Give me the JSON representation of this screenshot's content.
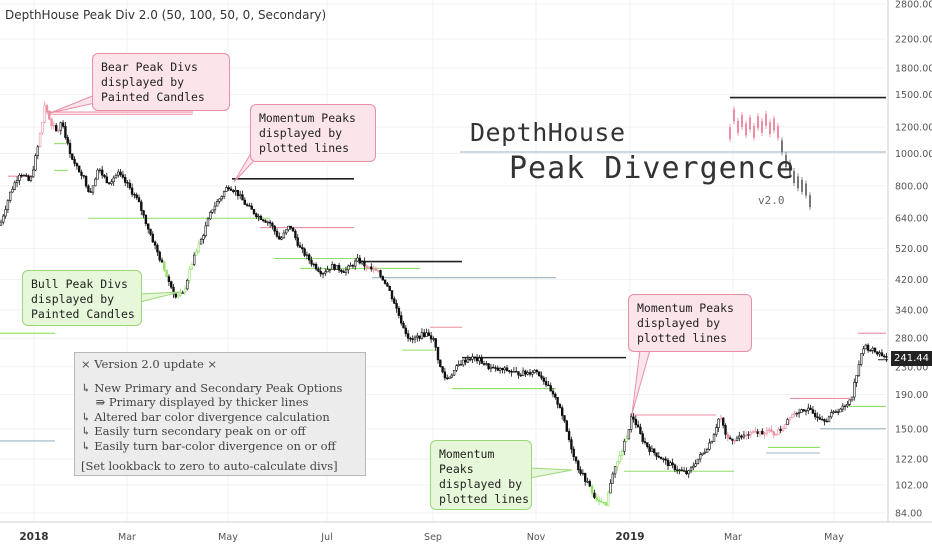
{
  "header": {
    "title": "DepthHouse Peak Div 2.0 (50, 100, 50, 0, Secondary)"
  },
  "chart_data": {
    "type": "candlestick",
    "title": "DepthHouse Peak Div 2.0 (50, 100, 50, 0, Secondary)",
    "scale": "log",
    "ylim": [
      78,
      3100
    ],
    "yticks": [
      2800,
      2200,
      1800,
      1500,
      1200,
      1000,
      800,
      640,
      520,
      420,
      340,
      280,
      230,
      190,
      150,
      122,
      102,
      84
    ],
    "xticks": [
      "2018",
      "Mar",
      "May",
      "Jul",
      "Sep",
      "Nov",
      "2019",
      "Mar",
      "May"
    ],
    "last_price": "241.44",
    "price_path": [
      [
        0,
        610
      ],
      [
        10,
        760
      ],
      [
        20,
        880
      ],
      [
        30,
        820
      ],
      [
        38,
        1050
      ],
      [
        45,
        1400
      ],
      [
        50,
        1250
      ],
      [
        57,
        1150
      ],
      [
        62,
        1250
      ],
      [
        68,
        1050
      ],
      [
        75,
        920
      ],
      [
        82,
        870
      ],
      [
        90,
        760
      ],
      [
        98,
        900
      ],
      [
        108,
        820
      ],
      [
        118,
        870
      ],
      [
        128,
        800
      ],
      [
        138,
        720
      ],
      [
        148,
        600
      ],
      [
        158,
        500
      ],
      [
        168,
        420
      ],
      [
        176,
        370
      ],
      [
        183,
        380
      ],
      [
        192,
        470
      ],
      [
        202,
        560
      ],
      [
        212,
        680
      ],
      [
        222,
        750
      ],
      [
        228,
        800
      ],
      [
        236,
        770
      ],
      [
        246,
        700
      ],
      [
        258,
        650
      ],
      [
        270,
        620
      ],
      [
        280,
        550
      ],
      [
        290,
        610
      ],
      [
        300,
        520
      ],
      [
        312,
        470
      ],
      [
        322,
        440
      ],
      [
        332,
        460
      ],
      [
        345,
        445
      ],
      [
        358,
        480
      ],
      [
        368,
        455
      ],
      [
        378,
        440
      ],
      [
        386,
        410
      ],
      [
        394,
        360
      ],
      [
        402,
        310
      ],
      [
        410,
        275
      ],
      [
        420,
        285
      ],
      [
        428,
        290
      ],
      [
        434,
        275
      ],
      [
        440,
        230
      ],
      [
        446,
        210
      ],
      [
        452,
        220
      ],
      [
        460,
        235
      ],
      [
        470,
        245
      ],
      [
        480,
        240
      ],
      [
        488,
        230
      ],
      [
        496,
        225
      ],
      [
        506,
        225
      ],
      [
        516,
        220
      ],
      [
        526,
        220
      ],
      [
        536,
        225
      ],
      [
        544,
        210
      ],
      [
        552,
        190
      ],
      [
        560,
        175
      ],
      [
        566,
        150
      ],
      [
        572,
        130
      ],
      [
        578,
        115
      ],
      [
        586,
        105
      ],
      [
        594,
        95
      ],
      [
        600,
        90
      ],
      [
        606,
        88
      ],
      [
        612,
        110
      ],
      [
        618,
        120
      ],
      [
        626,
        140
      ],
      [
        632,
        165
      ],
      [
        636,
        155
      ],
      [
        642,
        140
      ],
      [
        650,
        130
      ],
      [
        658,
        125
      ],
      [
        668,
        118
      ],
      [
        678,
        113
      ],
      [
        688,
        110
      ],
      [
        696,
        120
      ],
      [
        704,
        128
      ],
      [
        712,
        140
      ],
      [
        720,
        165
      ],
      [
        726,
        140
      ],
      [
        734,
        140
      ],
      [
        742,
        142
      ],
      [
        750,
        145
      ],
      [
        758,
        146
      ],
      [
        766,
        148
      ],
      [
        774,
        145
      ],
      [
        782,
        150
      ],
      [
        790,
        165
      ],
      [
        798,
        170
      ],
      [
        806,
        172
      ],
      [
        816,
        165
      ],
      [
        826,
        160
      ],
      [
        836,
        170
      ],
      [
        846,
        175
      ],
      [
        852,
        190
      ],
      [
        858,
        230
      ],
      [
        864,
        265
      ],
      [
        870,
        260
      ],
      [
        876,
        255
      ],
      [
        882,
        250
      ],
      [
        888,
        245
      ]
    ],
    "bear_painted_ranges": [
      [
        38,
        62
      ],
      [
        360,
        380
      ],
      [
        720,
        800
      ]
    ],
    "bull_painted_ranges": [
      [
        162,
        200
      ],
      [
        592,
        628
      ]
    ],
    "divergence_lines": [
      {
        "type": "bear",
        "from": [
          46,
          1330
        ],
        "to": [
          193,
          1330
        ]
      },
      {
        "type": "bear",
        "from": [
          50,
          1310
        ],
        "to": [
          193,
          1310
        ]
      },
      {
        "type": "bear",
        "from": [
          8,
          855
        ],
        "to": [
          34,
          855
        ]
      },
      {
        "type": "primary",
        "from": [
          232,
          840
        ],
        "to": [
          354,
          840
        ]
      },
      {
        "type": "bear",
        "from": [
          260,
          600
        ],
        "to": [
          354,
          600
        ]
      },
      {
        "type": "primary",
        "from": [
          360,
          475
        ],
        "to": [
          462,
          475
        ]
      },
      {
        "type": "bear",
        "from": [
          430,
          302
        ],
        "to": [
          462,
          302
        ]
      },
      {
        "type": "primary",
        "from": [
          462,
          245
        ],
        "to": [
          626,
          245
        ]
      },
      {
        "type": "bear",
        "from": [
          630,
          165
        ],
        "to": [
          716,
          165
        ]
      },
      {
        "type": "primary",
        "from": [
          730,
          1470
        ],
        "to": [
          886,
          1470
        ]
      },
      {
        "type": "bear",
        "from": [
          858,
          290
        ],
        "to": [
          886,
          290
        ]
      },
      {
        "type": "bear",
        "from": [
          790,
          185
        ],
        "to": [
          850,
          185
        ]
      },
      {
        "type": "bull",
        "from": [
          54,
          1070
        ],
        "to": [
          66,
          1070
        ]
      },
      {
        "type": "bull",
        "from": [
          54,
          890
        ],
        "to": [
          68,
          890
        ]
      },
      {
        "type": "bull",
        "from": [
          88,
          640
        ],
        "to": [
          270,
          640
        ]
      },
      {
        "type": "bull",
        "from": [
          274,
          485
        ],
        "to": [
          358,
          485
        ]
      },
      {
        "type": "bull",
        "from": [
          300,
          453
        ],
        "to": [
          420,
          453
        ]
      },
      {
        "type": "bull",
        "from": [
          402,
          258
        ],
        "to": [
          436,
          258
        ]
      },
      {
        "type": "bull",
        "from": [
          452,
          198
        ],
        "to": [
          556,
          198
        ]
      },
      {
        "type": "bull",
        "from": [
          624,
          112
        ],
        "to": [
          734,
          112
        ]
      },
      {
        "type": "bull",
        "from": [
          768,
          132
        ],
        "to": [
          820,
          132
        ]
      },
      {
        "type": "bull",
        "from": [
          850,
          175
        ],
        "to": [
          886,
          175
        ]
      },
      {
        "type": "bull",
        "from": [
          0,
          290
        ],
        "to": [
          55,
          290
        ]
      },
      {
        "type": "neutral",
        "from": [
          460,
          1010
        ],
        "to": [
          886,
          1010
        ]
      },
      {
        "type": "neutral",
        "from": [
          372,
          425
        ],
        "to": [
          556,
          425
        ]
      },
      {
        "type": "neutral",
        "from": [
          820,
          150
        ],
        "to": [
          886,
          150
        ]
      },
      {
        "type": "neutral",
        "from": [
          766,
          127
        ],
        "to": [
          820,
          127
        ]
      },
      {
        "type": "neutral",
        "from": [
          0,
          138
        ],
        "to": [
          55,
          138
        ]
      }
    ],
    "colors": {
      "bear": "#ec8fa2",
      "bull": "#8fe065",
      "primary": "#222222",
      "neutral": "#9bb2c0",
      "candle": "#111111",
      "grid": "#f2f2f2",
      "axis_text": "#555555"
    }
  },
  "annotations": {
    "bear_candles": [
      "Bear Peak Divs",
      "displayed by",
      "Painted Candles"
    ],
    "momentum_top": [
      "Momentum Peaks",
      "displayed by",
      "plotted lines"
    ],
    "bull_candles": [
      "Bull Peak Divs",
      "displayed by",
      "Painted Candles"
    ],
    "momentum_right": [
      "Momentum Peaks",
      "displayed by",
      "plotted lines"
    ],
    "momentum_bottom": [
      "Momentum",
      "Peaks",
      "displayed by",
      "plotted lines"
    ]
  },
  "update_box": {
    "title": "× Version 2.0 update ×",
    "lines": [
      "↳ New Primary and Secondary Peak Options",
      "    ⇛ Primary displayed by thicker lines",
      "↳ Altered bar color divergence calculation",
      "↳ Easily turn secondary peak on or off",
      "↳ Easily turn bar-color divergence on or off"
    ],
    "footer": "[Set lookback to zero to auto-calculate divs]"
  },
  "logo": {
    "line1": "DepthHouse",
    "line2": "Peak Divergence",
    "version": "v2.0"
  }
}
